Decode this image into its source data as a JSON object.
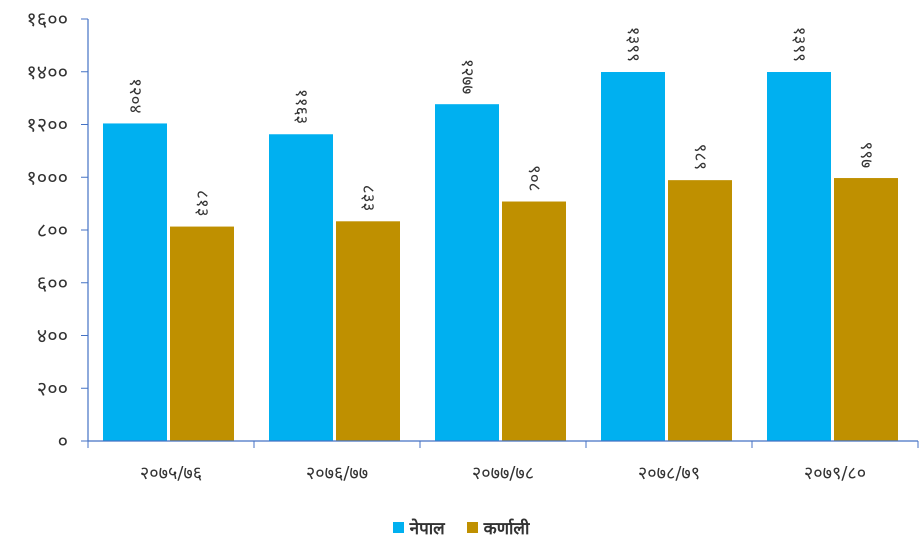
{
  "chart_data": {
    "type": "bar",
    "categories": [
      "२०७५/७६",
      "२०७६/७७",
      "२०७७/७८",
      "२०७८/७९",
      "२०७९/८०"
    ],
    "series": [
      {
        "name": "नेपाल",
        "color": "#00B0F0",
        "values": [
          1204,
          1163,
          1277,
          1399,
          1399
        ],
        "labels": [
          "१२०४",
          "११६३",
          "१२७७",
          "१३९९",
          "१३९९"
        ]
      },
      {
        "name": "कर्णाली",
        "color": "#BF9000",
        "values": [
          813,
          833,
          908,
          989,
          997
        ],
        "labels": [
          "८१३",
          "८३३",
          "९०८",
          "९८९",
          "९९७"
        ]
      }
    ],
    "ylim": [
      0,
      1600
    ],
    "yticks": [
      0,
      200,
      400,
      600,
      800,
      1000,
      1200,
      1400,
      1600
    ],
    "ytick_labels": [
      "०",
      "२००",
      "४००",
      "६००",
      "८००",
      "१०००",
      "१२००",
      "१४००",
      "१६००"
    ],
    "legend_position": "bottom",
    "grid": false,
    "title": "",
    "xlabel": "",
    "ylabel": ""
  }
}
